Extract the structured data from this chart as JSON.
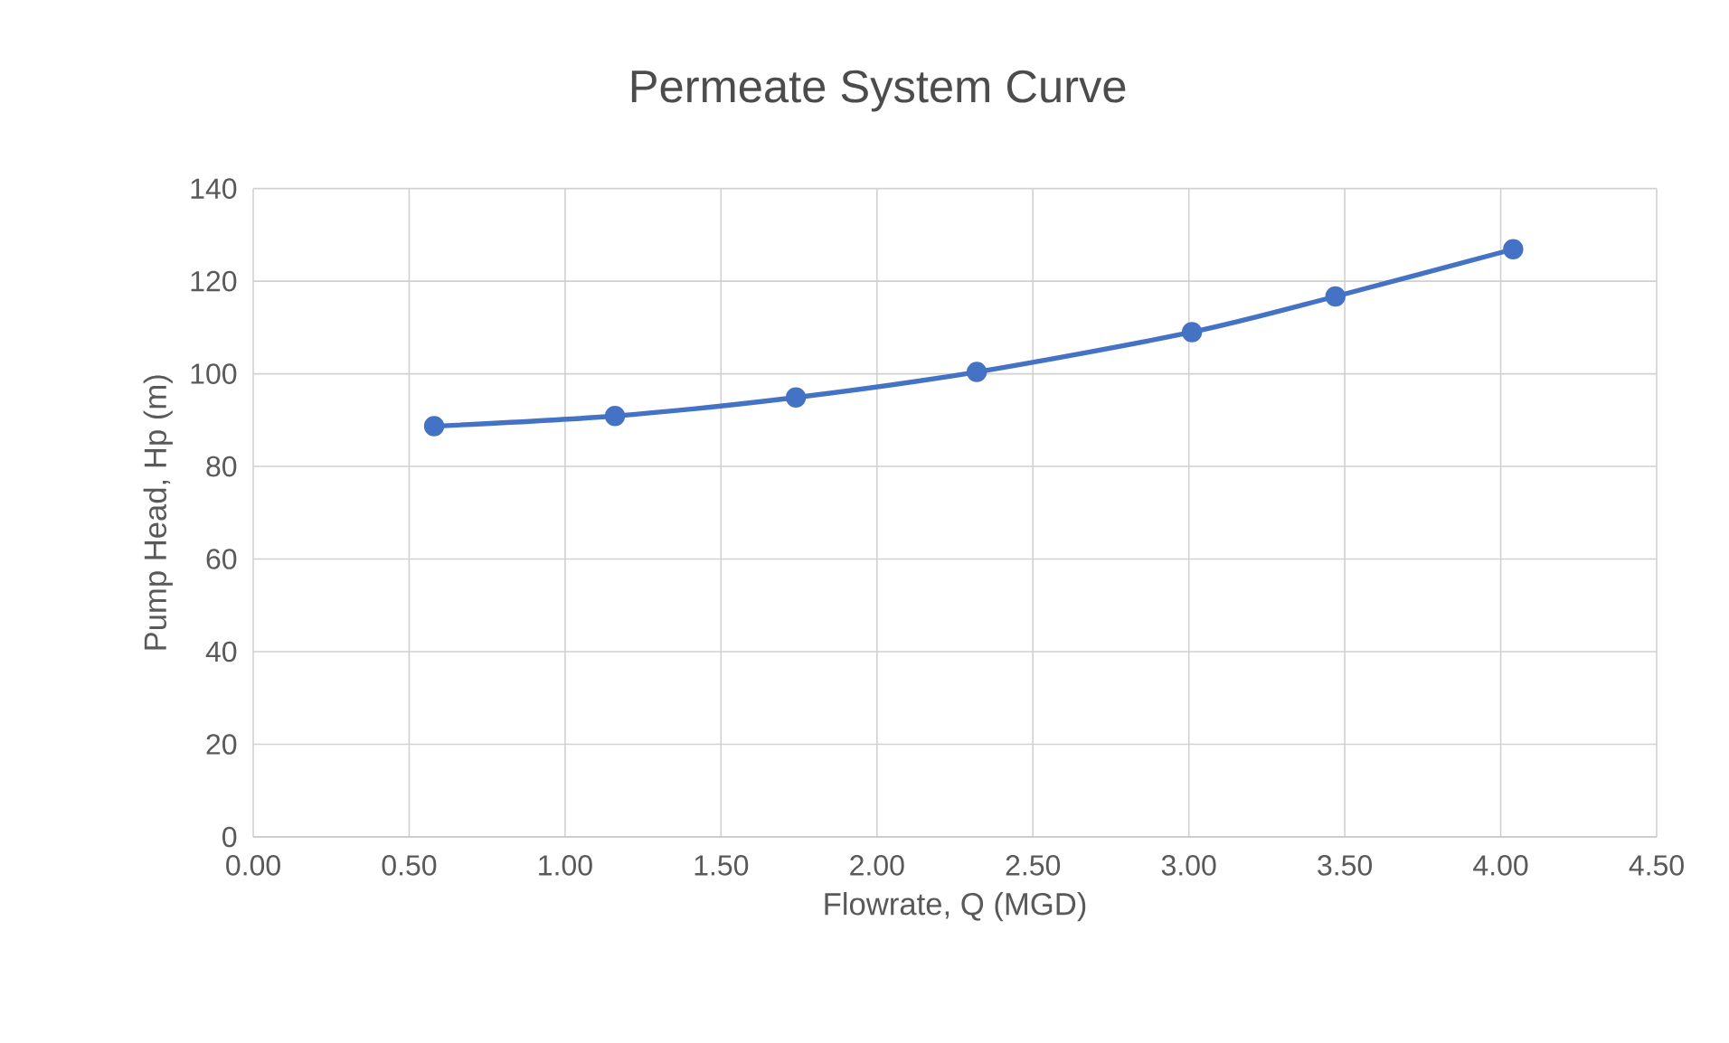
{
  "chart_data": {
    "type": "line",
    "title": "Permeate System Curve",
    "xlabel": "Flowrate, Q (MGD)",
    "ylabel": "Pump Head, Hp (m)",
    "x": [
      0.58,
      1.16,
      1.74,
      2.32,
      3.01,
      3.47,
      4.04
    ],
    "series": [
      {
        "color": "#4472c4",
        "values": [
          88.7,
          90.9,
          94.9,
          100.4,
          109.0,
          116.7,
          126.9
        ]
      }
    ],
    "xlim": [
      0,
      4.5
    ],
    "xticks": [
      {
        "value": 0,
        "label": "0.00"
      },
      {
        "value": 0.5,
        "label": "0.50"
      },
      {
        "value": 1,
        "label": "1.00"
      },
      {
        "value": 1.5,
        "label": "1.50"
      },
      {
        "value": 2,
        "label": "2.00"
      },
      {
        "value": 2.5,
        "label": "2.50"
      },
      {
        "value": 3,
        "label": "3.00"
      },
      {
        "value": 3.5,
        "label": "3.50"
      },
      {
        "value": 4,
        "label": "4.00"
      },
      {
        "value": 4.5,
        "label": "4.50"
      }
    ],
    "ylim": [
      0,
      140
    ],
    "yticks": [
      0,
      20,
      40,
      60,
      80,
      100,
      120,
      140
    ],
    "grid": true,
    "marker": "circle",
    "line_style": "solid"
  }
}
